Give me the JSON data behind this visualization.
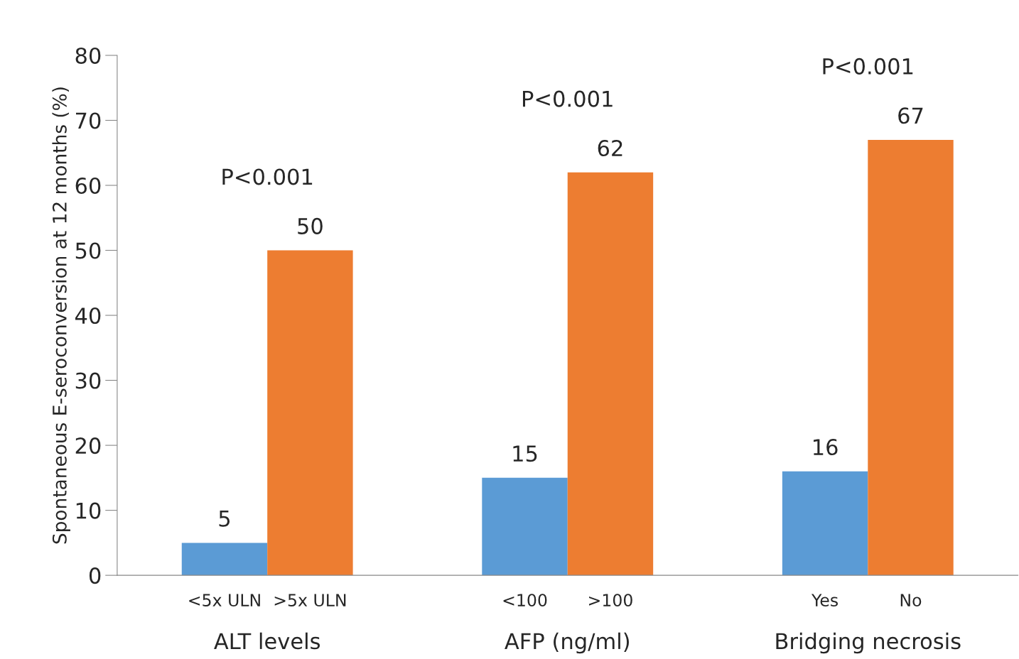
{
  "chart_data": {
    "type": "bar",
    "ylabel": "Spontaneous E-seroconversion at 12 months (%)",
    "categories": [
      "ALT levels",
      "AFP (ng/ml)",
      "Bridging necrosis"
    ],
    "series": [
      {
        "color": "#5b9bd5",
        "values": [
          5,
          15,
          16
        ]
      },
      {
        "color": "#ed7d31",
        "values": [
          50,
          62,
          67
        ]
      }
    ],
    "ylim": [
      0,
      80
    ],
    "yticks": [
      0,
      10,
      20,
      30,
      40,
      50,
      60,
      70,
      80
    ],
    "data_labels": true,
    "grid": false,
    "legend": false,
    "annotations": [
      "<5x ULN",
      ">5x ULN",
      "<100",
      ">100",
      "Yes",
      "No",
      "P<0.001",
      "P<0.001",
      "P<0.001"
    ]
  }
}
